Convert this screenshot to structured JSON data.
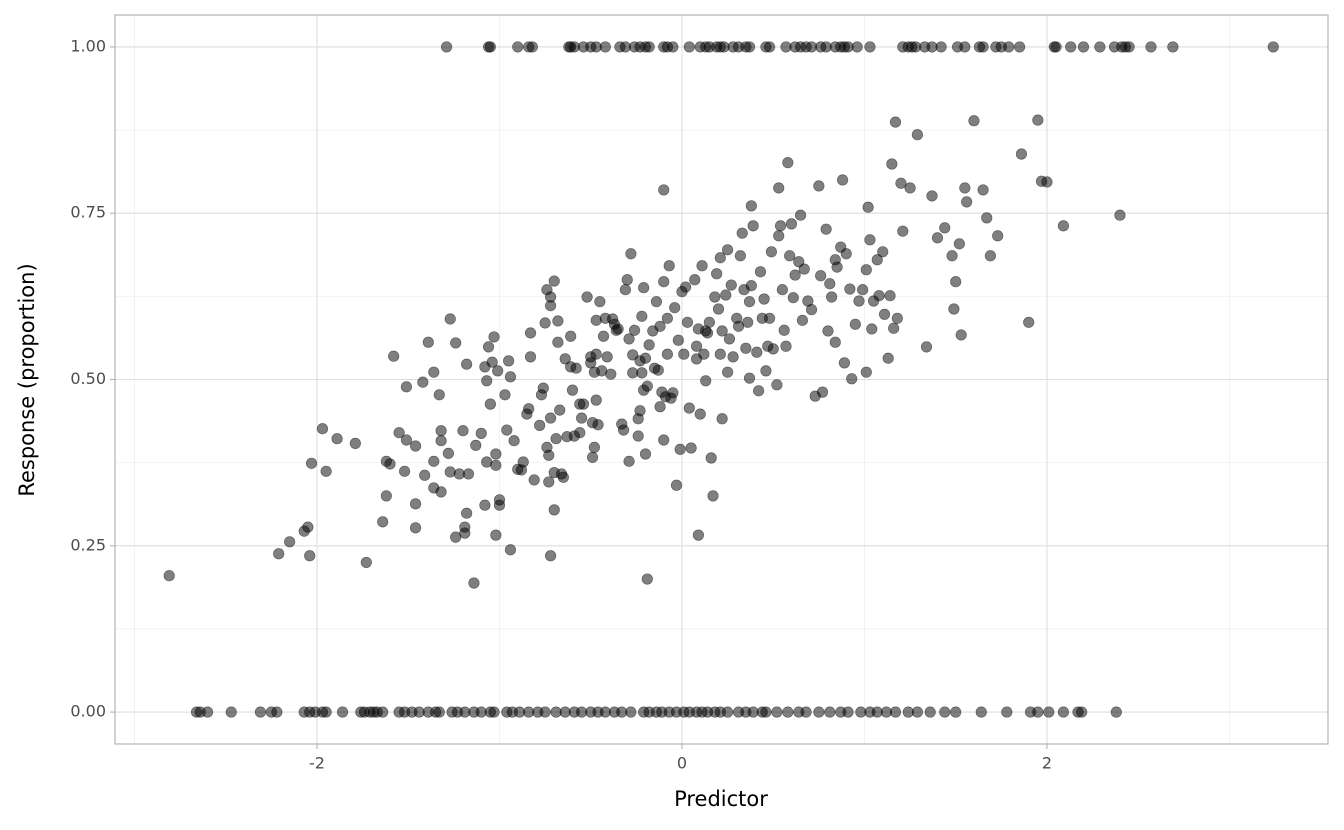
{
  "chart_data": {
    "type": "scatter",
    "x_label": "Predictor",
    "y_label": "Response (proportion)",
    "xlim": [
      -3.107,
      3.54
    ],
    "ylim": [
      -0.048,
      1.048
    ],
    "xticks": [
      -2,
      0,
      2
    ],
    "yticks": [
      {
        "value": 0,
        "label": "0.00"
      },
      {
        "value": 0.25,
        "label": "0.25"
      },
      {
        "value": 0.5,
        "label": "0.50"
      },
      {
        "value": 0.75,
        "label": "0.75"
      },
      {
        "value": 1,
        "label": "1.00"
      }
    ],
    "x_minor_grid": [
      -3,
      -1,
      1,
      3
    ],
    "y_minor_grid": [
      0.125,
      0.375,
      0.625,
      0.875
    ],
    "grid": true,
    "color": "#000000",
    "alpha": 0.5,
    "x": [
      -2.81,
      -2.21,
      -2.15,
      -2.07,
      -2.05,
      -2.04,
      -2.03,
      -1.97,
      -1.95,
      -1.89,
      -1.79,
      -1.73,
      -1.64,
      -1.62,
      -1.62,
      -1.6,
      -1.58,
      -1.55,
      -1.52,
      -1.51,
      -1.51,
      -1.46,
      -1.46,
      -1.46,
      -1.42,
      -1.41,
      -1.39,
      -1.36,
      -1.36,
      -1.36,
      -1.33,
      -1.32,
      -1.32,
      -1.32,
      -1.28,
      -1.27,
      -1.27,
      -1.24,
      -1.24,
      -1.22,
      -1.2,
      -1.19,
      -1.19,
      -1.18,
      -1.18,
      -1.17,
      -1.14,
      -1.13,
      -1.1,
      -1.08,
      -1.08,
      -1.07,
      -1.07,
      -1.06,
      -1.05,
      -1.04,
      -1.03,
      -1.02,
      -1.02,
      -1.02,
      -1.01,
      -1.0,
      -1.0,
      -0.97,
      -0.96,
      -0.95,
      -0.94,
      -0.94,
      -0.92,
      -0.9,
      -0.88,
      -0.87,
      -0.85,
      -0.84,
      -0.83,
      -0.83,
      -0.81,
      -0.78,
      -0.77,
      -0.76,
      -0.75,
      -0.74,
      -0.74,
      -0.73,
      -0.73,
      -0.72,
      -0.72,
      -0.72,
      -0.72,
      -0.7,
      -0.7,
      -0.7,
      -0.69,
      -0.68,
      -0.68,
      -0.67,
      -0.66,
      -0.65,
      -0.64,
      -0.63,
      -0.61,
      -0.61,
      -0.6,
      -0.59,
      -0.58,
      -0.56,
      -0.56,
      -0.55,
      -0.54,
      -0.52,
      -0.5,
      -0.5,
      -0.49,
      -0.49,
      -0.48,
      -0.48,
      -0.47,
      -0.47,
      -0.47,
      -0.46,
      -0.45,
      -0.44,
      -0.43,
      -0.42,
      -0.41,
      -0.39,
      -0.38,
      -0.37,
      -0.36,
      -0.35,
      -0.33,
      -0.32,
      -0.31,
      -0.3,
      -0.29,
      -0.29,
      -0.28,
      -0.27,
      -0.27,
      -0.26,
      -0.24,
      -0.24,
      -0.23,
      -0.23,
      -0.22,
      -0.22,
      -0.21,
      -0.21,
      -0.2,
      -0.2,
      -0.19,
      -0.19,
      -0.18,
      -0.16,
      -0.15,
      -0.14,
      -0.13,
      -0.12,
      -0.12,
      -0.11,
      -0.1,
      -0.1,
      -0.1,
      -0.09,
      -0.08,
      -0.08,
      -0.07,
      -0.06,
      -0.05,
      -0.04,
      -0.03,
      -0.02,
      -0.01,
      0.0,
      0.01,
      0.02,
      0.03,
      0.04,
      0.05,
      0.07,
      0.08,
      0.08,
      0.09,
      0.09,
      0.1,
      0.11,
      0.12,
      0.13,
      0.13,
      0.14,
      0.15,
      0.16,
      0.17,
      0.18,
      0.19,
      0.2,
      0.21,
      0.21,
      0.22,
      0.22,
      0.24,
      0.25,
      0.25,
      0.26,
      0.27,
      0.28,
      0.3,
      0.31,
      0.32,
      0.33,
      0.34,
      0.35,
      0.36,
      0.37,
      0.37,
      0.38,
      0.38,
      0.39,
      0.41,
      0.42,
      0.43,
      0.44,
      0.45,
      0.46,
      0.47,
      0.48,
      0.49,
      0.5,
      0.52,
      0.53,
      0.53,
      0.54,
      0.55,
      0.56,
      0.57,
      0.58,
      0.59,
      0.6,
      0.61,
      0.62,
      0.64,
      0.65,
      0.66,
      0.67,
      0.69,
      0.71,
      0.73,
      0.75,
      0.76,
      0.77,
      0.79,
      0.8,
      0.81,
      0.82,
      0.84,
      0.84,
      0.85,
      0.87,
      0.88,
      0.89,
      0.9,
      0.92,
      0.93,
      0.95,
      0.97,
      0.99,
      1.01,
      1.01,
      1.02,
      1.03,
      1.04,
      1.05,
      1.07,
      1.08,
      1.1,
      1.11,
      1.13,
      1.14,
      1.15,
      1.16,
      1.17,
      1.18,
      1.2,
      1.21,
      1.25,
      1.29,
      1.34,
      1.37,
      1.4,
      1.44,
      1.48,
      1.49,
      1.5,
      1.52,
      1.53,
      1.55,
      1.56,
      1.6,
      1.65,
      1.67,
      1.69,
      1.73,
      1.86,
      1.9,
      1.95,
      1.97,
      2.0,
      2.09,
      2.4,
      -1.29,
      -1.06,
      -1.05,
      -0.9,
      -0.84,
      -0.82,
      -0.62,
      -0.61,
      -0.59,
      -0.54,
      -0.5,
      -0.47,
      -0.42,
      -0.34,
      -0.31,
      -0.26,
      -0.23,
      -0.2,
      -0.18,
      -0.1,
      -0.08,
      -0.05,
      0.04,
      0.1,
      0.13,
      0.15,
      0.19,
      0.21,
      0.23,
      0.28,
      0.31,
      0.35,
      0.37,
      0.46,
      0.48,
      0.57,
      0.62,
      0.65,
      0.68,
      0.71,
      0.76,
      0.79,
      0.84,
      0.87,
      0.89,
      0.91,
      0.96,
      1.03,
      1.21,
      1.24,
      1.26,
      1.28,
      1.33,
      1.37,
      1.42,
      1.51,
      1.55,
      1.63,
      1.65,
      1.72,
      1.75,
      1.79,
      1.85,
      2.04,
      2.05,
      2.13,
      2.2,
      2.29,
      2.37,
      2.41,
      2.43,
      2.45,
      2.57,
      2.69,
      3.24,
      -2.66,
      -2.64,
      -2.6,
      -2.47,
      -2.31,
      -2.25,
      -2.22,
      -2.07,
      -2.04,
      -2.01,
      -1.97,
      -1.95,
      -1.86,
      -1.76,
      -1.74,
      -1.71,
      -1.69,
      -1.67,
      -1.64,
      -1.55,
      -1.52,
      -1.48,
      -1.44,
      -1.39,
      -1.35,
      -1.33,
      -1.26,
      -1.23,
      -1.19,
      -1.14,
      -1.1,
      -1.05,
      -1.03,
      -0.96,
      -0.93,
      -0.89,
      -0.84,
      -0.79,
      -0.75,
      -0.69,
      -0.64,
      -0.59,
      -0.55,
      -0.5,
      -0.46,
      -0.42,
      -0.37,
      -0.33,
      -0.28,
      -0.21,
      -0.18,
      -0.14,
      -0.11,
      -0.07,
      -0.03,
      0.01,
      0.04,
      0.08,
      0.11,
      0.14,
      0.18,
      0.21,
      0.25,
      0.31,
      0.35,
      0.39,
      0.44,
      0.46,
      0.52,
      0.58,
      0.64,
      0.68,
      0.75,
      0.81,
      0.87,
      0.91,
      0.98,
      1.03,
      1.07,
      1.12,
      1.17,
      1.24,
      1.29,
      1.36,
      1.44,
      1.5,
      1.64,
      1.78,
      1.91,
      1.95,
      2.01,
      2.09,
      2.17,
      2.19,
      2.38
    ],
    "values": [
      0.205,
      0.238,
      0.256,
      0.272,
      0.278,
      0.235,
      0.374,
      0.426,
      0.362,
      0.411,
      0.404,
      0.225,
      0.286,
      0.325,
      0.377,
      0.373,
      0.535,
      0.42,
      0.362,
      0.489,
      0.409,
      0.313,
      0.277,
      0.4,
      0.496,
      0.356,
      0.556,
      0.511,
      0.377,
      0.337,
      0.477,
      0.408,
      0.423,
      0.331,
      0.389,
      0.591,
      0.361,
      0.263,
      0.555,
      0.358,
      0.423,
      0.269,
      0.278,
      0.523,
      0.299,
      0.358,
      0.194,
      0.401,
      0.419,
      0.311,
      0.519,
      0.376,
      0.498,
      0.549,
      0.463,
      0.526,
      0.564,
      0.266,
      0.388,
      0.371,
      0.513,
      0.319,
      0.311,
      0.477,
      0.424,
      0.528,
      0.244,
      0.504,
      0.408,
      0.365,
      0.364,
      0.376,
      0.448,
      0.456,
      0.534,
      0.57,
      0.349,
      0.431,
      0.477,
      0.487,
      0.585,
      0.635,
      0.398,
      0.346,
      0.386,
      0.235,
      0.442,
      0.611,
      0.624,
      0.304,
      0.36,
      0.648,
      0.411,
      0.556,
      0.588,
      0.454,
      0.358,
      0.353,
      0.531,
      0.414,
      0.519,
      0.565,
      0.484,
      0.415,
      0.517,
      0.463,
      0.42,
      0.442,
      0.463,
      0.624,
      0.534,
      0.525,
      0.435,
      0.383,
      0.398,
      0.511,
      0.538,
      0.469,
      0.589,
      0.432,
      0.617,
      0.513,
      0.565,
      0.592,
      0.534,
      0.508,
      0.591,
      0.583,
      0.574,
      0.576,
      0.433,
      0.424,
      0.635,
      0.65,
      0.377,
      0.561,
      0.689,
      0.537,
      0.51,
      0.574,
      0.441,
      0.415,
      0.528,
      0.453,
      0.51,
      0.595,
      0.638,
      0.484,
      0.532,
      0.388,
      0.49,
      0.2,
      0.552,
      0.573,
      0.517,
      0.617,
      0.514,
      0.58,
      0.459,
      0.481,
      0.647,
      0.785,
      0.409,
      0.474,
      0.538,
      0.592,
      0.671,
      0.472,
      0.48,
      0.608,
      0.341,
      0.559,
      0.395,
      0.632,
      0.538,
      0.639,
      0.586,
      0.457,
      0.397,
      0.65,
      0.55,
      0.531,
      0.266,
      0.576,
      0.448,
      0.671,
      0.538,
      0.573,
      0.498,
      0.57,
      0.586,
      0.382,
      0.325,
      0.624,
      0.659,
      0.606,
      0.683,
      0.538,
      0.441,
      0.573,
      0.627,
      0.511,
      0.695,
      0.561,
      0.642,
      0.534,
      0.592,
      0.58,
      0.686,
      0.72,
      0.635,
      0.547,
      0.586,
      0.617,
      0.502,
      0.761,
      0.641,
      0.731,
      0.541,
      0.483,
      0.662,
      0.592,
      0.621,
      0.513,
      0.55,
      0.592,
      0.692,
      0.546,
      0.492,
      0.788,
      0.716,
      0.731,
      0.635,
      0.574,
      0.55,
      0.826,
      0.686,
      0.734,
      0.623,
      0.657,
      0.677,
      0.747,
      0.589,
      0.666,
      0.618,
      0.605,
      0.475,
      0.791,
      0.656,
      0.481,
      0.726,
      0.573,
      0.644,
      0.624,
      0.68,
      0.556,
      0.669,
      0.699,
      0.8,
      0.525,
      0.689,
      0.636,
      0.501,
      0.583,
      0.618,
      0.635,
      0.511,
      0.665,
      0.759,
      0.71,
      0.576,
      0.618,
      0.68,
      0.626,
      0.692,
      0.598,
      0.532,
      0.626,
      0.824,
      0.577,
      0.887,
      0.592,
      0.795,
      0.723,
      0.788,
      0.868,
      0.549,
      0.776,
      0.713,
      0.728,
      0.686,
      0.606,
      0.647,
      0.704,
      0.567,
      0.788,
      0.767,
      0.889,
      0.785,
      0.743,
      0.686,
      0.716,
      0.839,
      0.586,
      0.89,
      0.798,
      0.797,
      0.731,
      0.747,
      1,
      1,
      1,
      1,
      1,
      1,
      1,
      1,
      1,
      1,
      1,
      1,
      1,
      1,
      1,
      1,
      1,
      1,
      1,
      1,
      1,
      1,
      1,
      1,
      1,
      1,
      1,
      1,
      1,
      1,
      1,
      1,
      1,
      1,
      1,
      1,
      1,
      1,
      1,
      1,
      1,
      1,
      1,
      1,
      1,
      1,
      1,
      1,
      1,
      1,
      1,
      1,
      1,
      1,
      1,
      1,
      1,
      1,
      1,
      1,
      1,
      1,
      1,
      1,
      1,
      1,
      1,
      1,
      1,
      1,
      1,
      1,
      1,
      1,
      1,
      0,
      0,
      0,
      0,
      0,
      0,
      0,
      0,
      0,
      0,
      0,
      0,
      0,
      0,
      0,
      0,
      0,
      0,
      0,
      0,
      0,
      0,
      0,
      0,
      0,
      0,
      0,
      0,
      0,
      0,
      0,
      0,
      0,
      0,
      0,
      0,
      0,
      0,
      0,
      0,
      0,
      0,
      0,
      0,
      0,
      0,
      0,
      0,
      0,
      0,
      0,
      0,
      0,
      0,
      0,
      0,
      0,
      0,
      0,
      0,
      0,
      0,
      0,
      0,
      0,
      0,
      0,
      0,
      0,
      0,
      0,
      0,
      0,
      0,
      0,
      0,
      0,
      0,
      0,
      0,
      0,
      0,
      0,
      0,
      0,
      0,
      0,
      0,
      0,
      0,
      0,
      0,
      0,
      0,
      0
    ]
  }
}
